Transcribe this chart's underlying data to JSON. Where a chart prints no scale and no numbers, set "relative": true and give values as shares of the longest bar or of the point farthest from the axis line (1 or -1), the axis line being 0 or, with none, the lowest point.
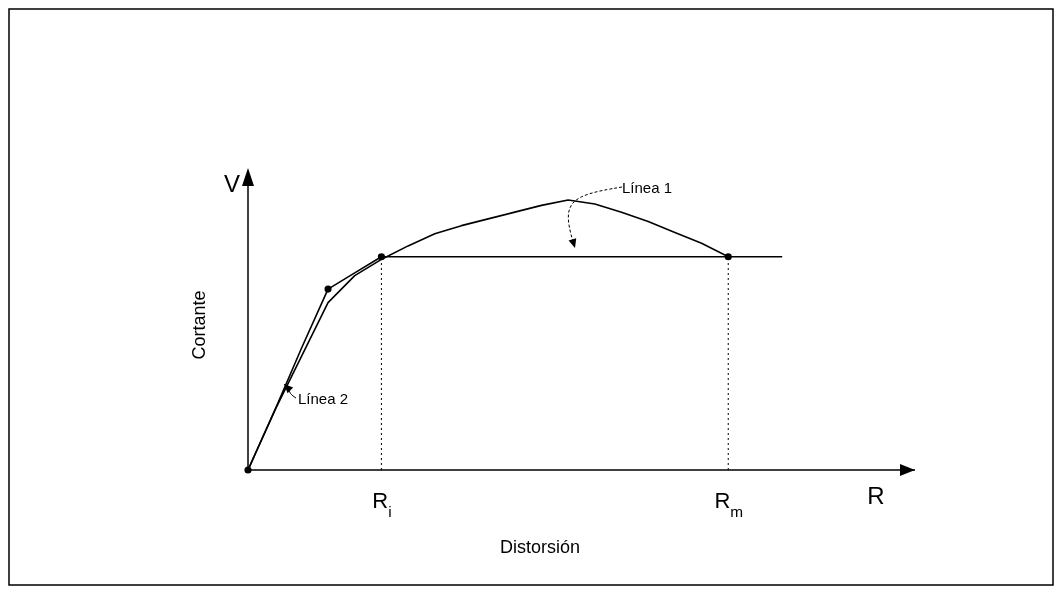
{
  "chart_data": {
    "type": "line",
    "relative": true,
    "xlabel": "Distorsión",
    "ylabel": "Cortante",
    "categories": [
      null,
      null,
      null,
      null,
      null,
      "R$_{i}$",
      null,
      null,
      null,
      null,
      null,
      null,
      null,
      null,
      null,
      null,
      null,
      null,
      "R$_{m}$",
      null,
      null,
      null,
      null,
      null,
      null,
      null
    ],
    "annotations": [
      "V",
      "R"
    ],
    "marker": "none",
    "series": [
      {
        "name": "Línea 1",
        "color": "#000000",
        "values": [
          0,
          0.22,
          0.42,
          0.62,
          0.72,
          0.78,
          0.83,
          0.875,
          0.905,
          0.93,
          0.955,
          0.98,
          1,
          0.985,
          0.955,
          0.92,
          0.88,
          0.84,
          0.79,
          null,
          null,
          null,
          null,
          null,
          null,
          null
        ]
      },
      {
        "name": "Línea 2",
        "color": "#000000",
        "values": [
          0,
          0.22,
          0.45,
          0.67,
          0.73,
          0.79,
          0.79,
          0.79,
          0.79,
          0.79,
          0.79,
          0.79,
          0.79,
          0.79,
          0.79,
          0.79,
          0.79,
          0.79,
          0.79,
          0.79,
          0.79,
          null,
          null,
          null,
          null,
          null
        ]
      },
      {
        "type": "scatter",
        "color": "#000000",
        "marker": "circle",
        "values": [
          0,
          null,
          null,
          0.67,
          null,
          0.79,
          null,
          null,
          null,
          null,
          null,
          null,
          null,
          null,
          null,
          null,
          null,
          null,
          0.79,
          null,
          null,
          null,
          null,
          null,
          null,
          null
        ]
      }
    ],
    "ref_lines": [
      {
        "axis": "x",
        "value": "R$_{i}$",
        "line_style": "dotted",
        "color": "#000000"
      },
      {
        "axis": "x",
        "value": "R$_{m}$",
        "line_style": "dotted",
        "color": "#000000"
      }
    ]
  }
}
